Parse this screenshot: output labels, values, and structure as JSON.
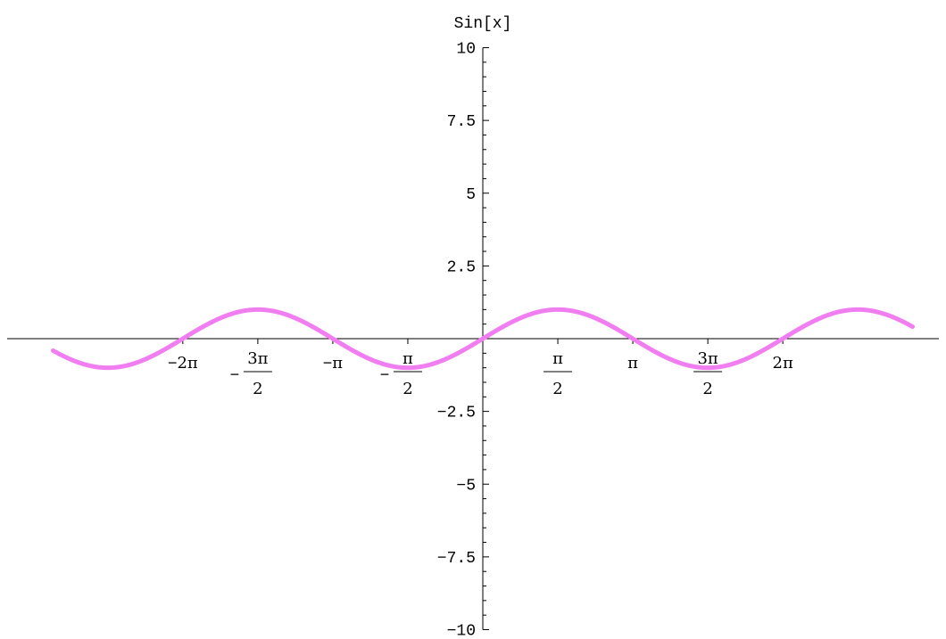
{
  "chart_data": {
    "type": "line",
    "ylabel": "Sin[x]",
    "xlabel": "",
    "function": "Sin[x]",
    "xlim": [
      -9.0,
      9.0
    ],
    "ylim": [
      -10,
      10
    ],
    "color": "#f07ef0",
    "x_ticks": [
      {
        "value": -6.2832,
        "label": "2π",
        "sign": "−"
      },
      {
        "value": -4.7124,
        "num": "3π",
        "den": "2",
        "sign": "−"
      },
      {
        "value": -3.1416,
        "label": "π",
        "sign": "−"
      },
      {
        "value": -1.5708,
        "num": "π",
        "den": "2",
        "sign": "−"
      },
      {
        "value": 1.5708,
        "num": "π",
        "den": "2",
        "sign": ""
      },
      {
        "value": 3.1416,
        "label": "π",
        "sign": ""
      },
      {
        "value": 4.7124,
        "num": "3π",
        "den": "2",
        "sign": ""
      },
      {
        "value": 6.2832,
        "label": "2π",
        "sign": ""
      }
    ],
    "y_ticks": [
      {
        "value": 10,
        "label": "10"
      },
      {
        "value": 7.5,
        "label": "7.5"
      },
      {
        "value": 5,
        "label": "5"
      },
      {
        "value": 2.5,
        "label": "2.5"
      },
      {
        "value": -2.5,
        "label": "−2.5"
      },
      {
        "value": -5,
        "label": "−5"
      },
      {
        "value": -7.5,
        "label": "−7.5"
      },
      {
        "value": -10,
        "label": "−10"
      }
    ],
    "grid": false,
    "legend": "none"
  }
}
